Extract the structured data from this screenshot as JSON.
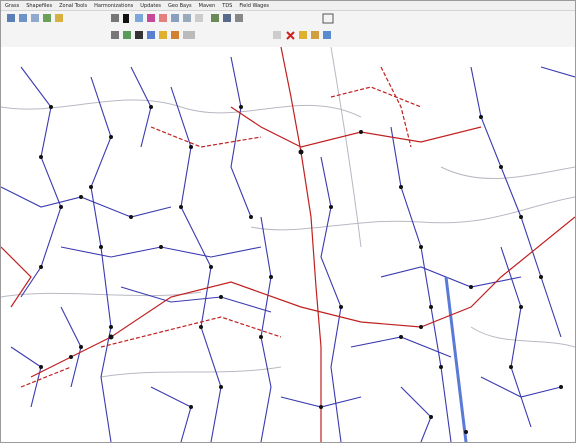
{
  "menu": {
    "items": [
      "Grass",
      "Shapefiles",
      "Zonal Tools",
      "Harmonizations",
      "Updates",
      "Geo Bays",
      "Maven",
      "TDS",
      "Field Wages"
    ]
  }
}
